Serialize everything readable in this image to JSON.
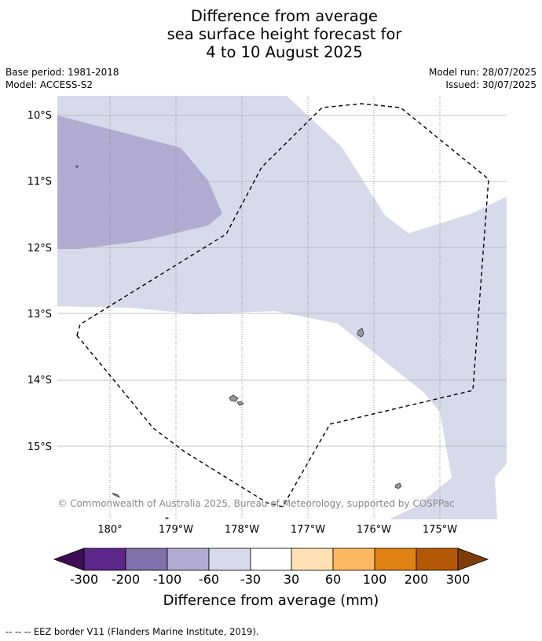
{
  "title": {
    "line1": "Difference from average",
    "line2": "sea surface height forecast for",
    "line3": "4 to 10 August 2025"
  },
  "meta": {
    "base_period": "Base period: 1981-2018",
    "model": "Model: ACCESS-S2",
    "model_run": "Model run: 28/07/2025",
    "issued": "Issued: 30/07/2025"
  },
  "map": {
    "lat_labels": [
      "10°S",
      "11°S",
      "12°S",
      "13°S",
      "14°S",
      "15°S"
    ],
    "lon_labels": [
      "180°",
      "179°W",
      "178°W",
      "177°W",
      "176°W",
      "175°W"
    ],
    "attribution": "© Commonwealth of Australia 2025, Bureau of Meteorology, supported by COSPPac",
    "colors": {
      "band_m100_m60": "#b1abd2",
      "band_m60_m30": "#d8d9ea",
      "land": "#999999",
      "eez": "#000000"
    }
  },
  "colorbar": {
    "ticks": [
      "-300",
      "-200",
      "-100",
      "-60",
      "-30",
      "30",
      "60",
      "100",
      "200",
      "300"
    ],
    "colors": [
      "#3f0d55",
      "#5b2789",
      "#8071ab",
      "#b1abd2",
      "#d8d9ea",
      "#ffffff",
      "#fee0b4",
      "#fdb862",
      "#e08214",
      "#b35807",
      "#7f3b08"
    ],
    "label": "Difference from average (mm)"
  },
  "footnote": "--  --  -- EEZ border V11 (Flanders Marine Institute, 2019)."
}
